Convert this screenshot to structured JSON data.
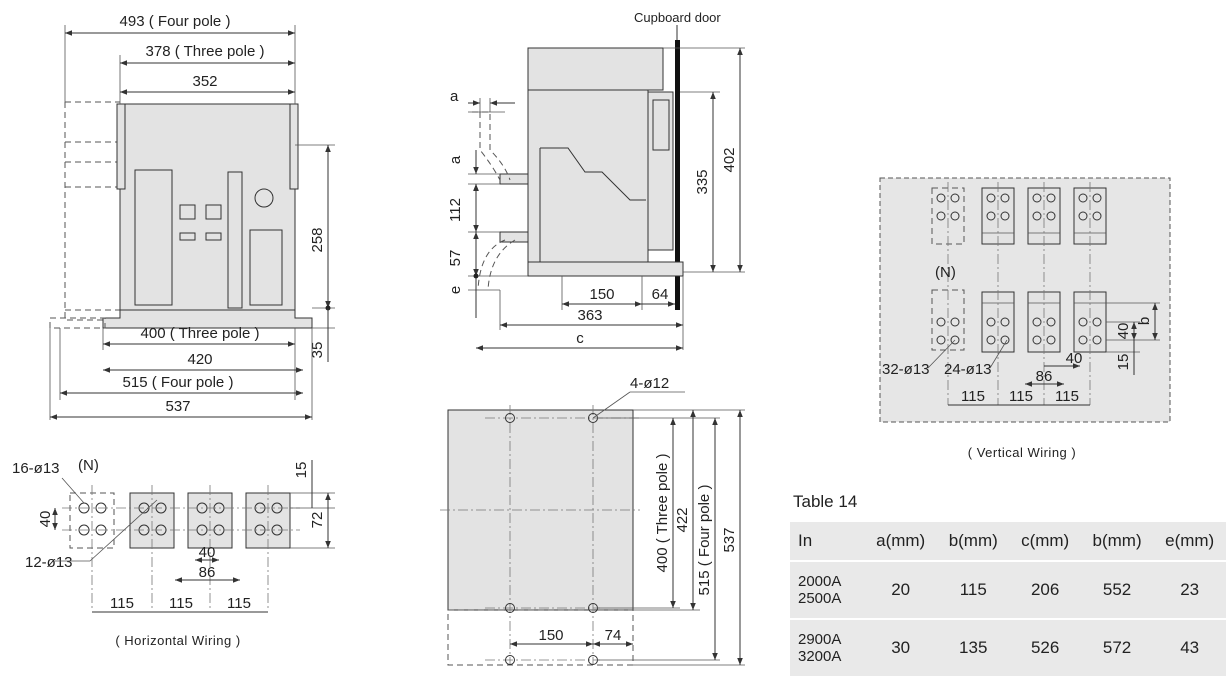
{
  "front_view": {
    "dims": {
      "four_pole_top": "493 ( Four pole )",
      "three_pole_top": "378 ( Three pole )",
      "inner_width": "352",
      "height": "258",
      "foot_height": "35",
      "three_pole_bottom": "400 ( Three pole )",
      "bottom_420": "420",
      "four_pole_bottom": "515 ( Four pole )",
      "bottom_537": "537"
    }
  },
  "horizontal_wiring": {
    "hole_16": "16-ø13",
    "neutral": "(N)",
    "hole_12": "12-ø13",
    "dim_40": "40",
    "dim_15": "15",
    "dim_72": "72",
    "dim_40b": "40",
    "dim_86": "86",
    "pitch": "115",
    "caption": "( Horizontal Wiring )"
  },
  "side_view": {
    "door_label": "Cupboard door",
    "a_top": "a",
    "a_left": "a",
    "dim_112": "112",
    "dim_57": "57",
    "e": "e",
    "dim_335": "335",
    "dim_402": "402",
    "dim_150": "150",
    "dim_64": "64",
    "dim_363": "363",
    "c": "c"
  },
  "mounting_view": {
    "holes": "4-ø12",
    "three_pole": "400 ( Three pole )",
    "dim_422": "422",
    "four_pole": "515 ( Four pole )",
    "dim_537": "537",
    "dim_150": "150",
    "dim_74": "74"
  },
  "vertical_wiring": {
    "neutral": "(N)",
    "hole_32": "32-ø13",
    "hole_24": "24-ø13",
    "dim_40": "40",
    "b": "b",
    "dim_15": "15",
    "dim_40b": "40",
    "dim_86": "86",
    "pitch": "115",
    "caption": "( Vertical Wiring )"
  },
  "table": {
    "title": "Table 14",
    "headers": [
      "In",
      "a(mm)",
      "b(mm)",
      "c(mm)",
      "b(mm)",
      "e(mm)"
    ],
    "rows": [
      {
        "in1": "2000A",
        "in2": "2500A",
        "a": "20",
        "b": "115",
        "c": "206",
        "b2": "552",
        "e": "23"
      },
      {
        "in1": "2900A",
        "in2": "3200A",
        "a": "30",
        "b": "135",
        "c": "526",
        "b2": "572",
        "e": "43"
      }
    ]
  }
}
